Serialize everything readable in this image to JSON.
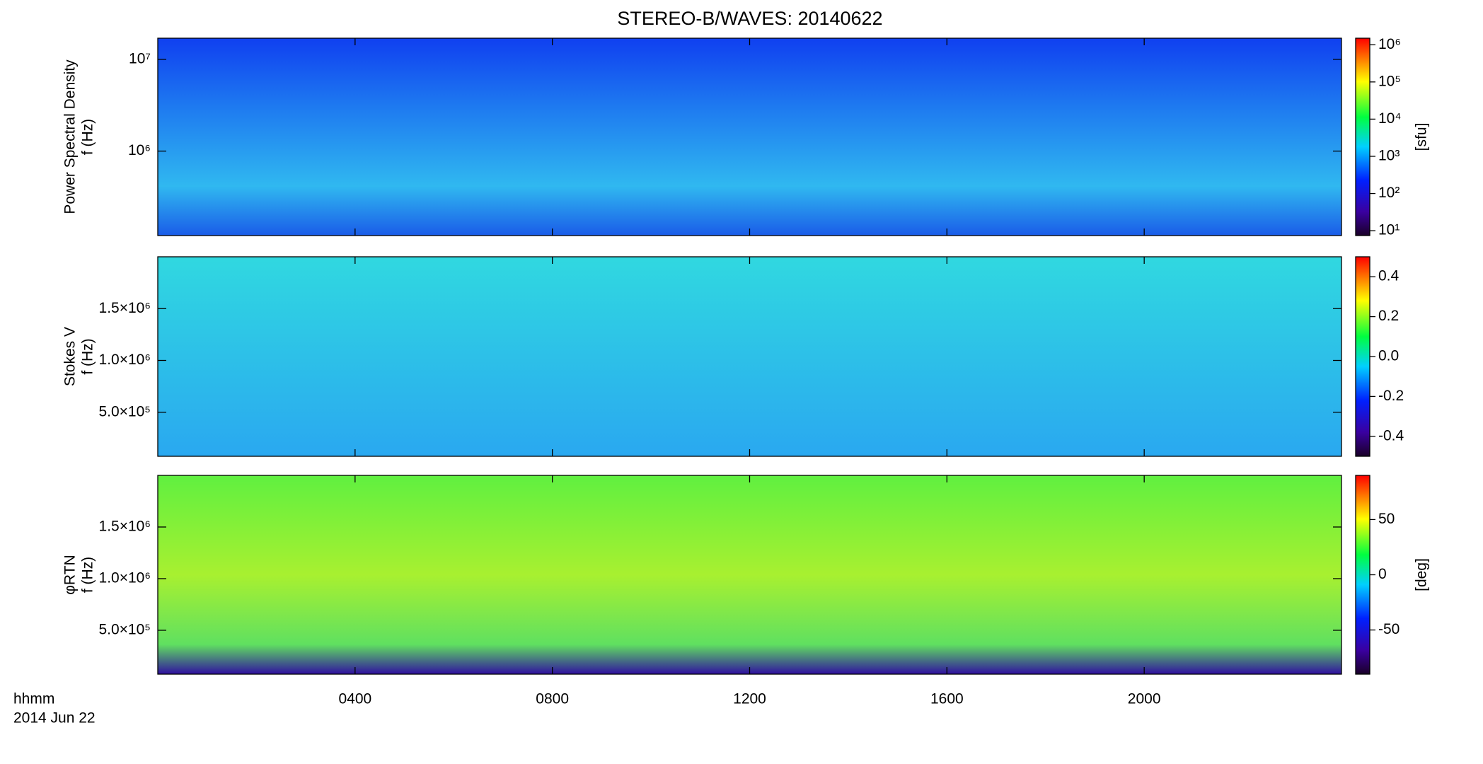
{
  "title": "STEREO-B/WAVES: 20140622",
  "x_axis": {
    "label": "hhmm",
    "date": "2014 Jun 22",
    "xlim": [
      0,
      24
    ],
    "xticks": [
      {
        "value": 4,
        "label": "0400"
      },
      {
        "value": 8,
        "label": "0800"
      },
      {
        "value": 12,
        "label": "1200"
      },
      {
        "value": 16,
        "label": "1600"
      },
      {
        "value": 20,
        "label": "2000"
      }
    ]
  },
  "chart_data": [
    {
      "type": "spectrogram",
      "ylabel": [
        "Power Spectral Density",
        "f (Hz)"
      ],
      "ylog": true,
      "ylim": [
        120000,
        17000000
      ],
      "yticks": [
        {
          "value": 1000000,
          "label": "10⁶"
        },
        {
          "value": 10000000,
          "label": "10⁷"
        }
      ],
      "colorbar": {
        "label": "[sfu]",
        "log": true,
        "lim": [
          7.4,
          1500000
        ],
        "ticks": [
          {
            "value": 10,
            "label": "10¹"
          },
          {
            "value": 100,
            "label": "10²"
          },
          {
            "value": 1000,
            "label": "10³"
          },
          {
            "value": 10000,
            "label": "10⁴"
          },
          {
            "value": 100000,
            "label": "10⁵"
          },
          {
            "value": 1000000,
            "label": "10⁶"
          }
        ]
      }
    },
    {
      "type": "spectrogram",
      "ylabel": [
        "Stokes V",
        "f (Hz)"
      ],
      "ylog": false,
      "ylim": [
        75000,
        2000000
      ],
      "yticks": [
        {
          "value": 500000,
          "label": "5.0×10⁵"
        },
        {
          "value": 1000000,
          "label": "1.0×10⁶"
        },
        {
          "value": 1500000,
          "label": "1.5×10⁶"
        }
      ],
      "colorbar": {
        "label": "",
        "log": false,
        "lim": [
          -0.5,
          0.5
        ],
        "ticks": [
          -0.4,
          -0.2,
          {
            "value": 0,
            "label": "0.0"
          },
          0.2,
          0.4
        ]
      }
    },
    {
      "type": "spectrogram",
      "ylabel": [
        "φRTN",
        "f (Hz)"
      ],
      "ylog": false,
      "ylim": [
        75000,
        2000000
      ],
      "yticks": [
        {
          "value": 500000,
          "label": "5.0×10⁵"
        },
        {
          "value": 1000000,
          "label": "1.0×10⁶"
        },
        {
          "value": 1500000,
          "label": "1.5×10⁶"
        }
      ],
      "colorbar": {
        "label": "[deg]",
        "log": false,
        "lim": [
          -90,
          90
        ],
        "ticks": [
          -50,
          0,
          50
        ]
      }
    }
  ]
}
